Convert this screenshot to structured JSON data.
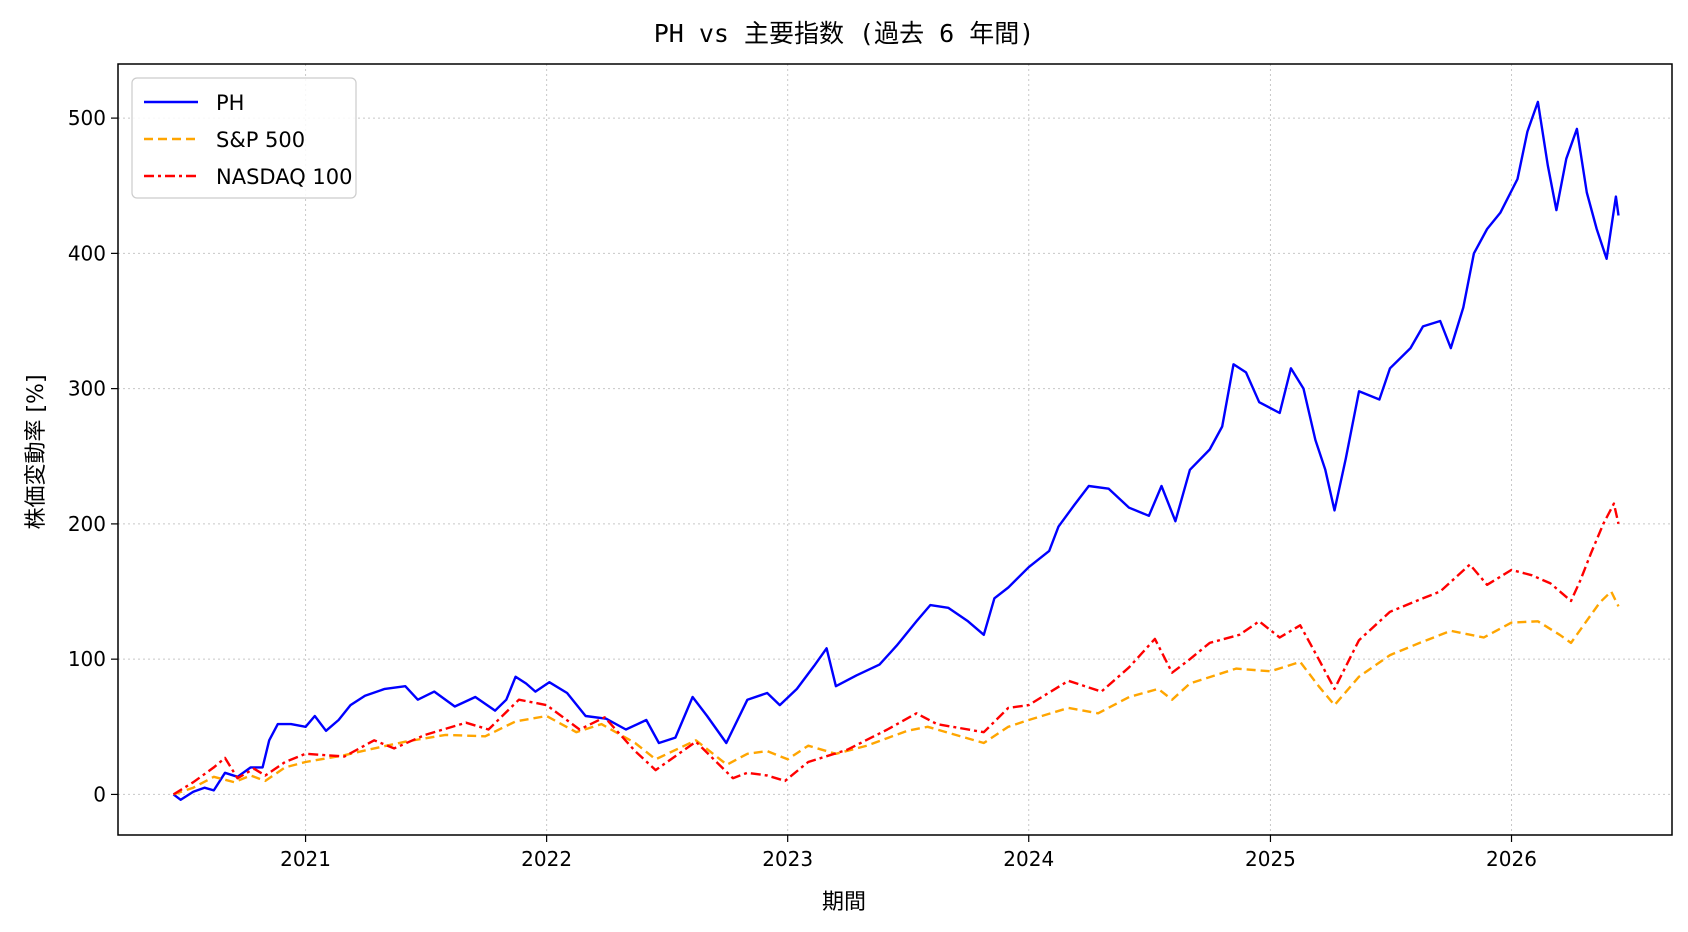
{
  "chart_data": {
    "type": "line",
    "title": "PH vs 主要指数 (過去 6 年間)",
    "xlabel": "期間",
    "ylabel": "株価変動率 [%]",
    "x_ticks": [
      "2021",
      "2022",
      "2023",
      "2024",
      "2025",
      "2026"
    ],
    "y_ticks": [
      0,
      100,
      200,
      300,
      400,
      500
    ],
    "xlim": [
      "2020-03-23",
      "2026-09-01"
    ],
    "ylim": [
      -30,
      540
    ],
    "grid": true,
    "legend_position": "top-left",
    "series": [
      {
        "name": "PH",
        "color": "#0000ff",
        "style": "solid",
        "points": [
          [
            "2020-06-15",
            0
          ],
          [
            "2020-06-26",
            -4
          ],
          [
            "2020-07-15",
            2
          ],
          [
            "2020-08-01",
            5
          ],
          [
            "2020-08-15",
            3
          ],
          [
            "2020-09-01",
            16
          ],
          [
            "2020-09-20",
            13
          ],
          [
            "2020-10-10",
            20
          ],
          [
            "2020-10-28",
            20
          ],
          [
            "2020-11-07",
            40
          ],
          [
            "2020-11-20",
            52
          ],
          [
            "2020-12-10",
            52
          ],
          [
            "2021-01-01",
            50
          ],
          [
            "2021-01-15",
            58
          ],
          [
            "2021-02-01",
            47
          ],
          [
            "2021-02-20",
            55
          ],
          [
            "2021-03-10",
            66
          ],
          [
            "2021-04-01",
            73
          ],
          [
            "2021-05-01",
            78
          ],
          [
            "2021-06-01",
            80
          ],
          [
            "2021-06-20",
            70
          ],
          [
            "2021-07-15",
            76
          ],
          [
            "2021-08-15",
            65
          ],
          [
            "2021-09-15",
            72
          ],
          [
            "2021-10-15",
            62
          ],
          [
            "2021-11-01",
            70
          ],
          [
            "2021-11-15",
            87
          ],
          [
            "2021-12-01",
            82
          ],
          [
            "2021-12-15",
            76
          ],
          [
            "2022-01-05",
            83
          ],
          [
            "2022-02-01",
            75
          ],
          [
            "2022-03-01",
            58
          ],
          [
            "2022-04-01",
            56
          ],
          [
            "2022-05-01",
            48
          ],
          [
            "2022-06-01",
            55
          ],
          [
            "2022-06-20",
            38
          ],
          [
            "2022-07-15",
            42
          ],
          [
            "2022-08-10",
            72
          ],
          [
            "2022-09-01",
            58
          ],
          [
            "2022-09-30",
            38
          ],
          [
            "2022-11-01",
            70
          ],
          [
            "2022-12-01",
            75
          ],
          [
            "2022-12-20",
            66
          ],
          [
            "2023-01-15",
            78
          ],
          [
            "2023-02-10",
            95
          ],
          [
            "2023-03-01",
            108
          ],
          [
            "2023-03-15",
            80
          ],
          [
            "2023-04-15",
            88
          ],
          [
            "2023-05-20",
            96
          ],
          [
            "2023-06-15",
            110
          ],
          [
            "2023-07-15",
            128
          ],
          [
            "2023-08-05",
            140
          ],
          [
            "2023-09-01",
            138
          ],
          [
            "2023-10-01",
            128
          ],
          [
            "2023-10-25",
            118
          ],
          [
            "2023-11-10",
            145
          ],
          [
            "2023-12-01",
            153
          ],
          [
            "2024-01-01",
            168
          ],
          [
            "2024-02-01",
            180
          ],
          [
            "2024-02-15",
            198
          ],
          [
            "2024-03-10",
            214
          ],
          [
            "2024-04-01",
            228
          ],
          [
            "2024-05-01",
            226
          ],
          [
            "2024-06-01",
            212
          ],
          [
            "2024-07-01",
            206
          ],
          [
            "2024-07-20",
            228
          ],
          [
            "2024-08-10",
            202
          ],
          [
            "2024-09-01",
            240
          ],
          [
            "2024-10-01",
            255
          ],
          [
            "2024-10-20",
            272
          ],
          [
            "2024-11-06",
            318
          ],
          [
            "2024-11-25",
            312
          ],
          [
            "2024-12-15",
            290
          ],
          [
            "2025-01-15",
            282
          ],
          [
            "2025-02-01",
            315
          ],
          [
            "2025-02-20",
            300
          ],
          [
            "2025-03-10",
            262
          ],
          [
            "2025-03-25",
            240
          ],
          [
            "2025-04-08",
            210
          ],
          [
            "2025-04-25",
            248
          ],
          [
            "2025-05-15",
            298
          ],
          [
            "2025-06-15",
            292
          ],
          [
            "2025-07-01",
            315
          ],
          [
            "2025-08-01",
            330
          ],
          [
            "2025-08-20",
            346
          ],
          [
            "2025-09-15",
            350
          ],
          [
            "2025-10-01",
            330
          ],
          [
            "2025-10-20",
            360
          ],
          [
            "2025-11-05",
            400
          ],
          [
            "2025-11-25",
            418
          ],
          [
            "2025-12-15",
            430
          ],
          [
            "2026-01-10",
            455
          ],
          [
            "2026-01-25",
            490
          ],
          [
            "2026-02-10",
            512
          ],
          [
            "2026-02-25",
            465
          ],
          [
            "2026-03-10",
            432
          ],
          [
            "2026-03-25",
            470
          ],
          [
            "2026-04-10",
            492
          ],
          [
            "2026-04-25",
            445
          ],
          [
            "2026-05-10",
            418
          ],
          [
            "2026-05-25",
            396
          ],
          [
            "2026-06-08",
            442
          ],
          [
            "2026-06-12",
            428
          ]
        ]
      },
      {
        "name": "S&P 500",
        "color": "#ffa500",
        "style": "dashed",
        "points": [
          [
            "2020-06-15",
            0
          ],
          [
            "2020-07-15",
            5
          ],
          [
            "2020-08-15",
            13
          ],
          [
            "2020-09-15",
            9
          ],
          [
            "2020-10-10",
            14
          ],
          [
            "2020-11-01",
            10
          ],
          [
            "2020-12-01",
            20
          ],
          [
            "2021-01-01",
            24
          ],
          [
            "2021-03-01",
            29
          ],
          [
            "2021-04-15",
            34
          ],
          [
            "2021-06-01",
            39
          ],
          [
            "2021-08-01",
            44
          ],
          [
            "2021-09-30",
            43
          ],
          [
            "2021-11-15",
            54
          ],
          [
            "2022-01-01",
            58
          ],
          [
            "2022-02-15",
            46
          ],
          [
            "2022-03-25",
            52
          ],
          [
            "2022-05-15",
            38
          ],
          [
            "2022-06-15",
            26
          ],
          [
            "2022-08-15",
            40
          ],
          [
            "2022-10-01",
            22
          ],
          [
            "2022-11-01",
            30
          ],
          [
            "2022-12-01",
            32
          ],
          [
            "2023-01-01",
            26
          ],
          [
            "2023-02-01",
            36
          ],
          [
            "2023-03-15",
            30
          ],
          [
            "2023-05-01",
            36
          ],
          [
            "2023-07-01",
            47
          ],
          [
            "2023-08-01",
            50
          ],
          [
            "2023-10-25",
            38
          ],
          [
            "2023-12-01",
            50
          ],
          [
            "2024-01-01",
            55
          ],
          [
            "2024-03-01",
            64
          ],
          [
            "2024-04-15",
            60
          ],
          [
            "2024-06-01",
            72
          ],
          [
            "2024-07-15",
            78
          ],
          [
            "2024-08-05",
            70
          ],
          [
            "2024-09-01",
            82
          ],
          [
            "2024-11-10",
            93
          ],
          [
            "2025-01-01",
            91
          ],
          [
            "2025-02-15",
            98
          ],
          [
            "2025-03-15",
            80
          ],
          [
            "2025-04-08",
            66
          ],
          [
            "2025-05-15",
            87
          ],
          [
            "2025-07-01",
            103
          ],
          [
            "2025-08-15",
            112
          ],
          [
            "2025-10-01",
            121
          ],
          [
            "2025-11-20",
            116
          ],
          [
            "2026-01-01",
            127
          ],
          [
            "2026-02-10",
            128
          ],
          [
            "2026-03-15",
            118
          ],
          [
            "2026-04-01",
            112
          ],
          [
            "2026-04-20",
            125
          ],
          [
            "2026-05-15",
            142
          ],
          [
            "2026-06-01",
            150
          ],
          [
            "2026-06-12",
            139
          ]
        ]
      },
      {
        "name": "NASDAQ 100",
        "color": "#ff0000",
        "style": "dashdot",
        "points": [
          [
            "2020-06-15",
            0
          ],
          [
            "2020-07-15",
            9
          ],
          [
            "2020-08-15",
            20
          ],
          [
            "2020-09-01",
            27
          ],
          [
            "2020-09-20",
            12
          ],
          [
            "2020-10-15",
            19
          ],
          [
            "2020-11-01",
            14
          ],
          [
            "2020-12-01",
            24
          ],
          [
            "2021-01-01",
            30
          ],
          [
            "2021-03-01",
            28
          ],
          [
            "2021-04-15",
            40
          ],
          [
            "2021-05-15",
            34
          ],
          [
            "2021-07-01",
            44
          ],
          [
            "2021-09-01",
            53
          ],
          [
            "2021-10-05",
            48
          ],
          [
            "2021-11-20",
            70
          ],
          [
            "2022-01-01",
            66
          ],
          [
            "2022-02-20",
            48
          ],
          [
            "2022-03-30",
            57
          ],
          [
            "2022-05-15",
            32
          ],
          [
            "2022-06-15",
            18
          ],
          [
            "2022-08-15",
            39
          ],
          [
            "2022-10-10",
            12
          ],
          [
            "2022-11-01",
            16
          ],
          [
            "2022-12-01",
            14
          ],
          [
            "2022-12-28",
            10
          ],
          [
            "2023-02-01",
            24
          ],
          [
            "2023-04-01",
            33
          ],
          [
            "2023-06-01",
            48
          ],
          [
            "2023-07-15",
            60
          ],
          [
            "2023-08-15",
            52
          ],
          [
            "2023-10-25",
            46
          ],
          [
            "2023-12-01",
            64
          ],
          [
            "2024-01-01",
            66
          ],
          [
            "2024-03-01",
            84
          ],
          [
            "2024-04-20",
            76
          ],
          [
            "2024-06-01",
            94
          ],
          [
            "2024-07-10",
            115
          ],
          [
            "2024-08-05",
            90
          ],
          [
            "2024-09-01",
            100
          ],
          [
            "2024-10-01",
            112
          ],
          [
            "2024-11-15",
            118
          ],
          [
            "2024-12-15",
            128
          ],
          [
            "2025-01-15",
            116
          ],
          [
            "2025-02-15",
            125
          ],
          [
            "2025-03-15",
            100
          ],
          [
            "2025-04-08",
            78
          ],
          [
            "2025-05-15",
            114
          ],
          [
            "2025-07-01",
            135
          ],
          [
            "2025-08-15",
            144
          ],
          [
            "2025-09-15",
            150
          ],
          [
            "2025-10-30",
            170
          ],
          [
            "2025-11-25",
            155
          ],
          [
            "2026-01-01",
            166
          ],
          [
            "2026-02-01",
            162
          ],
          [
            "2026-03-01",
            156
          ],
          [
            "2026-04-01",
            143
          ],
          [
            "2026-04-15",
            158
          ],
          [
            "2026-05-01",
            178
          ],
          [
            "2026-05-20",
            200
          ],
          [
            "2026-06-05",
            215
          ],
          [
            "2026-06-12",
            200
          ]
        ]
      }
    ]
  }
}
